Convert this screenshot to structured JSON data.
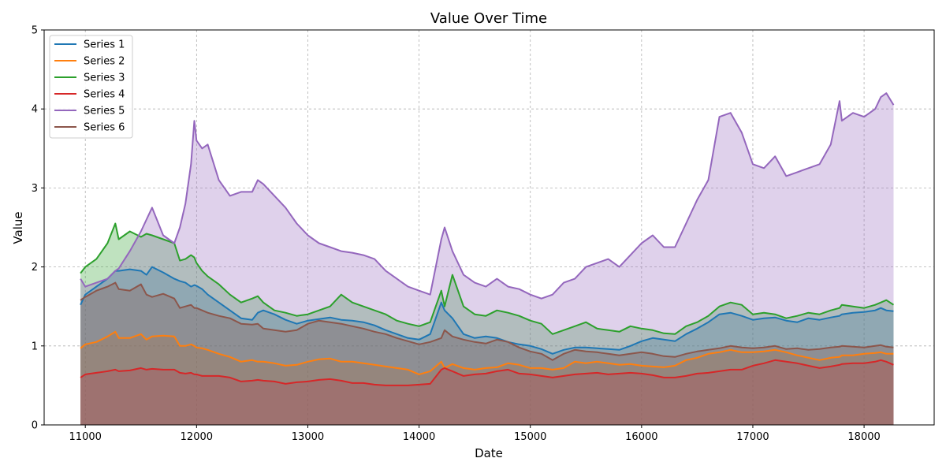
{
  "chart_data": {
    "type": "area",
    "title": "Value Over Time",
    "xlabel": "Date",
    "ylabel": "Value",
    "xlim": [
      10630,
      18630
    ],
    "ylim": [
      0,
      5
    ],
    "xticks": [
      11000,
      12000,
      13000,
      14000,
      15000,
      16000,
      17000,
      18000
    ],
    "yticks": [
      0,
      1,
      2,
      3,
      4,
      5
    ],
    "grid": true,
    "legend_position": "upper-left",
    "x": [
      10957,
      11000,
      11100,
      11200,
      11270,
      11300,
      11400,
      11500,
      11550,
      11600,
      11700,
      11800,
      11850,
      11900,
      11950,
      11980,
      12000,
      12050,
      12100,
      12200,
      12300,
      12400,
      12500,
      12550,
      12600,
      12700,
      12800,
      12900,
      13000,
      13100,
      13200,
      13300,
      13400,
      13500,
      13600,
      13700,
      13800,
      13900,
      14000,
      14100,
      14200,
      14230,
      14300,
      14400,
      14500,
      14600,
      14700,
      14800,
      14900,
      15000,
      15100,
      15200,
      15300,
      15400,
      15500,
      15600,
      15700,
      15800,
      15900,
      16000,
      16100,
      16200,
      16300,
      16400,
      16500,
      16600,
      16700,
      16800,
      16900,
      17000,
      17100,
      17200,
      17300,
      17400,
      17500,
      17600,
      17700,
      17780,
      17800,
      17900,
      18000,
      18100,
      18150,
      18200,
      18265
    ],
    "series": [
      {
        "name": "Series 1",
        "color": "#1f77b4",
        "values": [
          1.52,
          1.65,
          1.75,
          1.85,
          1.95,
          1.95,
          1.97,
          1.95,
          1.9,
          2.0,
          1.93,
          1.85,
          1.82,
          1.8,
          1.75,
          1.77,
          1.76,
          1.72,
          1.65,
          1.55,
          1.45,
          1.35,
          1.33,
          1.42,
          1.45,
          1.4,
          1.33,
          1.28,
          1.32,
          1.34,
          1.36,
          1.33,
          1.32,
          1.3,
          1.26,
          1.2,
          1.15,
          1.1,
          1.08,
          1.15,
          1.55,
          1.45,
          1.35,
          1.15,
          1.1,
          1.12,
          1.1,
          1.05,
          1.02,
          1.0,
          0.96,
          0.9,
          0.95,
          0.98,
          0.98,
          0.97,
          0.96,
          0.95,
          1.0,
          1.06,
          1.1,
          1.08,
          1.06,
          1.15,
          1.22,
          1.3,
          1.4,
          1.42,
          1.38,
          1.33,
          1.35,
          1.36,
          1.32,
          1.3,
          1.35,
          1.33,
          1.36,
          1.38,
          1.4,
          1.42,
          1.43,
          1.45,
          1.48,
          1.45,
          1.44
        ]
      },
      {
        "name": "Series 2",
        "color": "#ff7f0e",
        "values": [
          0.97,
          1.02,
          1.05,
          1.12,
          1.18,
          1.1,
          1.1,
          1.15,
          1.08,
          1.12,
          1.13,
          1.12,
          1.0,
          1.0,
          1.02,
          1.0,
          0.98,
          0.97,
          0.95,
          0.9,
          0.86,
          0.8,
          0.82,
          0.8,
          0.8,
          0.78,
          0.75,
          0.76,
          0.8,
          0.83,
          0.84,
          0.8,
          0.8,
          0.78,
          0.76,
          0.74,
          0.72,
          0.7,
          0.64,
          0.68,
          0.8,
          0.72,
          0.77,
          0.72,
          0.7,
          0.72,
          0.73,
          0.78,
          0.76,
          0.72,
          0.72,
          0.7,
          0.72,
          0.8,
          0.78,
          0.8,
          0.78,
          0.76,
          0.77,
          0.75,
          0.74,
          0.73,
          0.75,
          0.82,
          0.85,
          0.9,
          0.92,
          0.95,
          0.92,
          0.92,
          0.93,
          0.95,
          0.92,
          0.88,
          0.85,
          0.82,
          0.85,
          0.86,
          0.88,
          0.88,
          0.9,
          0.91,
          0.92,
          0.9,
          0.9
        ]
      },
      {
        "name": "Series 3",
        "color": "#2ca02c",
        "values": [
          1.92,
          2.0,
          2.1,
          2.3,
          2.55,
          2.35,
          2.45,
          2.38,
          2.42,
          2.4,
          2.35,
          2.3,
          2.08,
          2.1,
          2.15,
          2.12,
          2.05,
          1.95,
          1.88,
          1.78,
          1.65,
          1.55,
          1.6,
          1.63,
          1.55,
          1.45,
          1.42,
          1.38,
          1.4,
          1.45,
          1.5,
          1.65,
          1.55,
          1.5,
          1.45,
          1.4,
          1.32,
          1.28,
          1.25,
          1.3,
          1.7,
          1.5,
          1.9,
          1.5,
          1.4,
          1.38,
          1.45,
          1.42,
          1.38,
          1.32,
          1.28,
          1.15,
          1.2,
          1.25,
          1.3,
          1.22,
          1.2,
          1.18,
          1.25,
          1.22,
          1.2,
          1.16,
          1.15,
          1.25,
          1.3,
          1.38,
          1.5,
          1.55,
          1.52,
          1.4,
          1.42,
          1.4,
          1.35,
          1.38,
          1.42,
          1.4,
          1.45,
          1.48,
          1.52,
          1.5,
          1.48,
          1.52,
          1.55,
          1.58,
          1.52
        ]
      },
      {
        "name": "Series 4",
        "color": "#d62728",
        "values": [
          0.6,
          0.64,
          0.66,
          0.68,
          0.7,
          0.68,
          0.69,
          0.72,
          0.7,
          0.71,
          0.7,
          0.7,
          0.66,
          0.65,
          0.66,
          0.64,
          0.64,
          0.62,
          0.62,
          0.62,
          0.6,
          0.55,
          0.56,
          0.57,
          0.56,
          0.55,
          0.52,
          0.54,
          0.55,
          0.57,
          0.58,
          0.56,
          0.53,
          0.53,
          0.51,
          0.5,
          0.5,
          0.5,
          0.51,
          0.52,
          0.7,
          0.72,
          0.68,
          0.62,
          0.64,
          0.65,
          0.68,
          0.7,
          0.65,
          0.64,
          0.62,
          0.6,
          0.62,
          0.64,
          0.65,
          0.66,
          0.64,
          0.65,
          0.66,
          0.65,
          0.63,
          0.6,
          0.6,
          0.62,
          0.65,
          0.66,
          0.68,
          0.7,
          0.7,
          0.75,
          0.78,
          0.82,
          0.8,
          0.78,
          0.75,
          0.72,
          0.74,
          0.76,
          0.77,
          0.78,
          0.78,
          0.8,
          0.82,
          0.8,
          0.76
        ]
      },
      {
        "name": "Series 5",
        "color": "#9467bd",
        "values": [
          1.85,
          1.75,
          1.8,
          1.85,
          1.95,
          1.98,
          2.2,
          2.45,
          2.6,
          2.75,
          2.4,
          2.3,
          2.5,
          2.8,
          3.3,
          3.85,
          3.6,
          3.5,
          3.55,
          3.1,
          2.9,
          2.95,
          2.95,
          3.1,
          3.05,
          2.9,
          2.75,
          2.55,
          2.4,
          2.3,
          2.25,
          2.2,
          2.18,
          2.15,
          2.1,
          1.95,
          1.85,
          1.75,
          1.7,
          1.65,
          2.35,
          2.5,
          2.2,
          1.9,
          1.8,
          1.75,
          1.85,
          1.75,
          1.72,
          1.65,
          1.6,
          1.65,
          1.8,
          1.85,
          2.0,
          2.05,
          2.1,
          2.0,
          2.15,
          2.3,
          2.4,
          2.25,
          2.25,
          2.55,
          2.85,
          3.1,
          3.9,
          3.95,
          3.7,
          3.3,
          3.25,
          3.4,
          3.15,
          3.2,
          3.25,
          3.3,
          3.55,
          4.1,
          3.85,
          3.95,
          3.9,
          4.0,
          4.15,
          4.2,
          4.05
        ]
      },
      {
        "name": "Series 6",
        "color": "#8c564b",
        "values": [
          1.58,
          1.62,
          1.7,
          1.75,
          1.8,
          1.72,
          1.7,
          1.78,
          1.65,
          1.62,
          1.66,
          1.6,
          1.48,
          1.5,
          1.52,
          1.48,
          1.48,
          1.45,
          1.42,
          1.38,
          1.35,
          1.28,
          1.27,
          1.28,
          1.22,
          1.2,
          1.18,
          1.2,
          1.28,
          1.32,
          1.3,
          1.28,
          1.25,
          1.22,
          1.18,
          1.15,
          1.1,
          1.06,
          1.02,
          1.05,
          1.1,
          1.2,
          1.12,
          1.08,
          1.05,
          1.03,
          1.08,
          1.05,
          0.98,
          0.93,
          0.9,
          0.82,
          0.9,
          0.95,
          0.93,
          0.92,
          0.9,
          0.88,
          0.9,
          0.92,
          0.9,
          0.87,
          0.86,
          0.9,
          0.93,
          0.95,
          0.97,
          1.0,
          0.98,
          0.97,
          0.98,
          1.0,
          0.96,
          0.97,
          0.95,
          0.96,
          0.98,
          0.99,
          1.0,
          0.99,
          0.98,
          1.0,
          1.01,
          0.99,
          0.98
        ]
      }
    ]
  }
}
